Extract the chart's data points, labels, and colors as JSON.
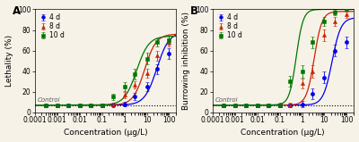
{
  "panel_A": {
    "title": "A",
    "ylabel": "Lethality (%)",
    "xlabel": "Concentration (μg/L)",
    "ylim": [
      0,
      100
    ],
    "xlim": [
      0.0001,
      200
    ],
    "control_y": 7.0,
    "series": [
      {
        "label": "4 d",
        "color": "#0000EE",
        "marker": "o",
        "x": [
          0.0003,
          0.001,
          0.003,
          0.01,
          0.03,
          0.1,
          0.3,
          1.0,
          3.0,
          10.0,
          30.0,
          100.0
        ],
        "y": [
          7.0,
          7.0,
          7.0,
          7.0,
          7.0,
          7.0,
          7.0,
          8.0,
          15.0,
          25.0,
          42.0,
          57.0
        ],
        "yerr": [
          1.0,
          1.0,
          1.0,
          1.0,
          1.0,
          1.0,
          1.5,
          2.0,
          3.5,
          4.5,
          5.0,
          5.0
        ],
        "ec50": 28.0,
        "hill": 1.6,
        "top": 78.0,
        "bottom": 7.0
      },
      {
        "label": "8 d",
        "color": "#CC2200",
        "marker": "^",
        "x": [
          0.0003,
          0.001,
          0.003,
          0.01,
          0.03,
          0.1,
          0.3,
          1.0,
          3.0,
          10.0,
          30.0,
          100.0
        ],
        "y": [
          7.0,
          7.0,
          7.0,
          7.0,
          7.0,
          7.0,
          8.0,
          17.0,
          27.0,
          38.0,
          55.0,
          68.0
        ],
        "yerr": [
          1.0,
          1.0,
          1.0,
          1.0,
          1.0,
          1.0,
          1.5,
          3.0,
          3.5,
          4.0,
          4.5,
          4.0
        ],
        "ec50": 8.0,
        "hill": 1.7,
        "top": 76.0,
        "bottom": 7.0
      },
      {
        "label": "10 d",
        "color": "#007700",
        "marker": "s",
        "x": [
          0.0003,
          0.001,
          0.003,
          0.01,
          0.03,
          0.1,
          0.3,
          1.0,
          3.0,
          10.0,
          30.0,
          100.0
        ],
        "y": [
          7.0,
          7.0,
          7.0,
          7.0,
          7.0,
          7.0,
          15.0,
          25.0,
          37.0,
          52.0,
          68.0,
          70.0
        ],
        "yerr": [
          1.0,
          1.0,
          1.0,
          1.0,
          1.0,
          1.5,
          3.0,
          4.5,
          5.0,
          5.5,
          4.0,
          4.0
        ],
        "ec50": 3.5,
        "hill": 1.6,
        "top": 74.0,
        "bottom": 7.0
      }
    ]
  },
  "panel_B": {
    "title": "B",
    "ylabel": "Burrowing inhibition (%)",
    "xlabel": "Concentration (μg/L)",
    "ylim": [
      0,
      100
    ],
    "xlim": [
      0.0001,
      200
    ],
    "control_y": 7.0,
    "series": [
      {
        "label": "4 d",
        "color": "#0000EE",
        "marker": "o",
        "x": [
          0.0003,
          0.001,
          0.003,
          0.01,
          0.03,
          0.1,
          0.3,
          1.0,
          3.0,
          10.0,
          30.0,
          100.0
        ],
        "y": [
          7.0,
          7.0,
          7.0,
          7.0,
          7.0,
          7.0,
          7.0,
          8.0,
          18.0,
          34.0,
          60.0,
          68.0
        ],
        "yerr": [
          1.0,
          1.0,
          1.0,
          1.0,
          1.0,
          1.0,
          1.5,
          3.0,
          5.0,
          6.0,
          6.0,
          5.5
        ],
        "ec50": 22.0,
        "hill": 2.2,
        "top": 92.0,
        "bottom": 7.0
      },
      {
        "label": "8 d",
        "color": "#CC2200",
        "marker": "^",
        "x": [
          0.0003,
          0.001,
          0.003,
          0.01,
          0.03,
          0.1,
          0.3,
          1.0,
          3.0,
          10.0,
          30.0,
          100.0
        ],
        "y": [
          7.0,
          7.0,
          7.0,
          7.0,
          7.0,
          7.0,
          7.0,
          28.0,
          40.0,
          75.0,
          88.0,
          95.0
        ],
        "yerr": [
          1.0,
          1.0,
          1.0,
          1.0,
          1.0,
          1.0,
          2.0,
          5.0,
          6.0,
          5.5,
          4.5,
          3.0
        ],
        "ec50": 3.5,
        "hill": 2.5,
        "top": 98.0,
        "bottom": 7.0
      },
      {
        "label": "10 d",
        "color": "#007700",
        "marker": "s",
        "x": [
          0.0003,
          0.001,
          0.003,
          0.01,
          0.03,
          0.1,
          0.3,
          1.0,
          3.0,
          10.0,
          30.0,
          100.0
        ],
        "y": [
          7.0,
          7.0,
          7.0,
          7.0,
          7.0,
          7.0,
          30.0,
          40.0,
          68.0,
          88.0,
          97.0,
          100.0
        ],
        "yerr": [
          1.0,
          1.0,
          1.0,
          1.0,
          1.0,
          2.0,
          5.0,
          6.0,
          5.5,
          4.5,
          2.5,
          1.5
        ],
        "ec50": 0.55,
        "hill": 2.8,
        "top": 100.0,
        "bottom": 7.0
      }
    ]
  },
  "bg_color": "#f7f2e8",
  "legend_fontsize": 5.5,
  "axis_fontsize": 6.5,
  "tick_fontsize": 5.5
}
